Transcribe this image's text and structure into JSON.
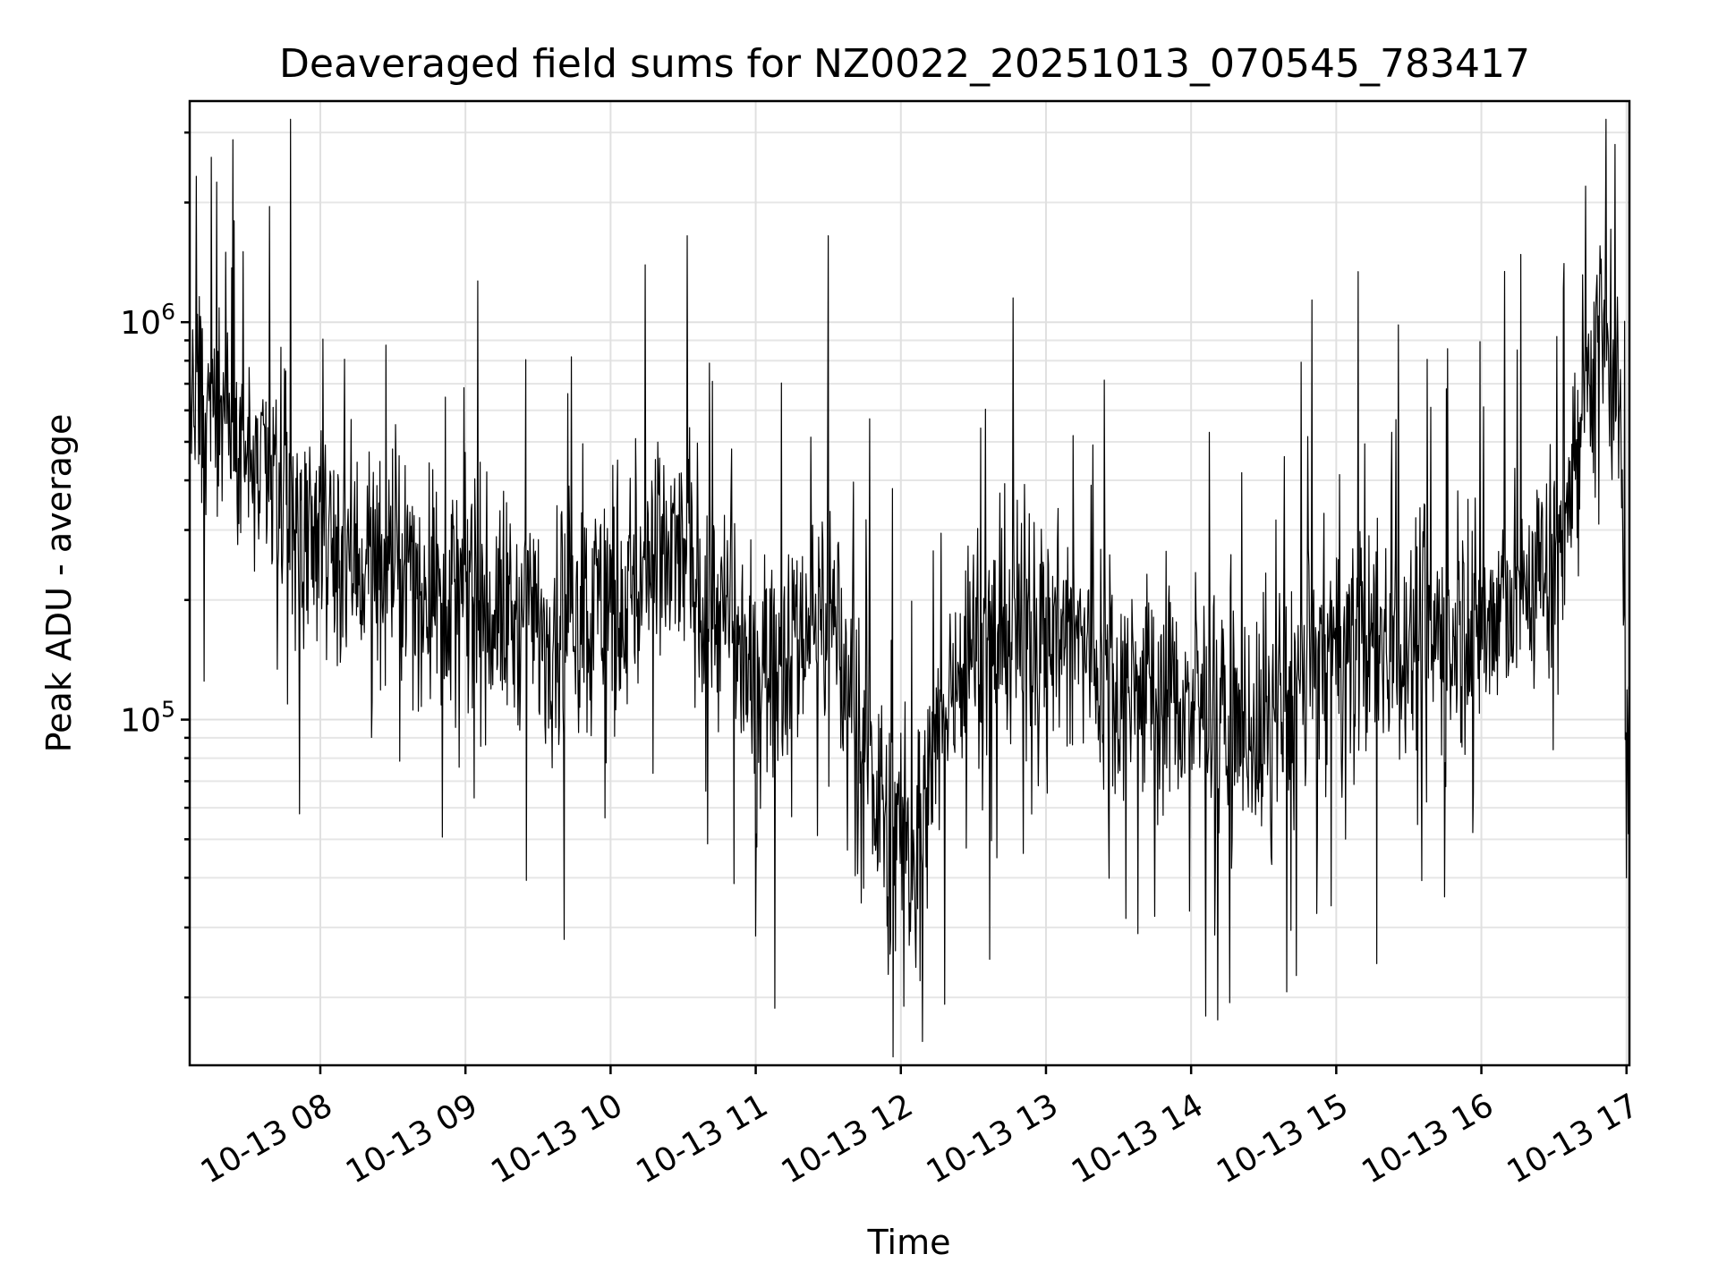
{
  "chart_data": {
    "type": "line",
    "title": "Deaveraged field sums for NZ0022_20251013_070545_783417",
    "xlabel": "Time",
    "ylabel": "Peak ADU - average",
    "yscale": "log",
    "ylim": [
      13500,
      3600000
    ],
    "xlim_hours": [
      7.1,
      17.02
    ],
    "grid": true,
    "y_ticks": [
      {
        "value": 100000,
        "base": "10",
        "exp": "5"
      },
      {
        "value": 1000000,
        "base": "10",
        "exp": "6"
      }
    ],
    "x_ticks": [
      {
        "hour": 8,
        "label": "10-13 08"
      },
      {
        "hour": 9,
        "label": "10-13 09"
      },
      {
        "hour": 10,
        "label": "10-13 10"
      },
      {
        "hour": 11,
        "label": "10-13 11"
      },
      {
        "hour": 12,
        "label": "10-13 12"
      },
      {
        "hour": 13,
        "label": "10-13 13"
      },
      {
        "hour": 14,
        "label": "10-13 14"
      },
      {
        "hour": 15,
        "label": "10-13 15"
      },
      {
        "hour": 16,
        "label": "10-13 16"
      },
      {
        "hour": 17,
        "label": "10-13 17"
      }
    ],
    "trend": {
      "hours": [
        7.1,
        7.3,
        7.5,
        8.0,
        8.5,
        9.0,
        9.5,
        10.0,
        10.5,
        11.0,
        11.5,
        11.8,
        12.1,
        12.4,
        13.0,
        13.5,
        14.0,
        14.5,
        15.0,
        15.5,
        16.0,
        16.5,
        16.8,
        16.95,
        17.0
      ],
      "values": [
        550000,
        700000,
        450000,
        280000,
        240000,
        200000,
        170000,
        200000,
        260000,
        130000,
        200000,
        65000,
        45000,
        150000,
        180000,
        130000,
        110000,
        95000,
        150000,
        160000,
        170000,
        250000,
        900000,
        600000,
        110000
      ]
    },
    "peaks": [
      {
        "hour": 7.25,
        "value": 2600000
      },
      {
        "hour": 7.35,
        "value": 1500000
      },
      {
        "hour": 10.53,
        "value": 1650000
      },
      {
        "hour": 11.5,
        "value": 1650000
      },
      {
        "hour": 16.72,
        "value": 2200000
      },
      {
        "hour": 16.92,
        "value": 2800000
      }
    ],
    "troughs": [
      {
        "hour": 7.2,
        "value": 125000
      },
      {
        "hour": 9.68,
        "value": 28000
      },
      {
        "hour": 12.02,
        "value": 19000
      },
      {
        "hour": 12.15,
        "value": 15500
      },
      {
        "hour": 13.75,
        "value": 32000
      },
      {
        "hour": 17.0,
        "value": 40000
      }
    ],
    "series": [
      {
        "name": "Deaveraged field sums",
        "color": "#000000",
        "points": 2400,
        "noise_log10_amplitude": 0.38
      }
    ]
  }
}
